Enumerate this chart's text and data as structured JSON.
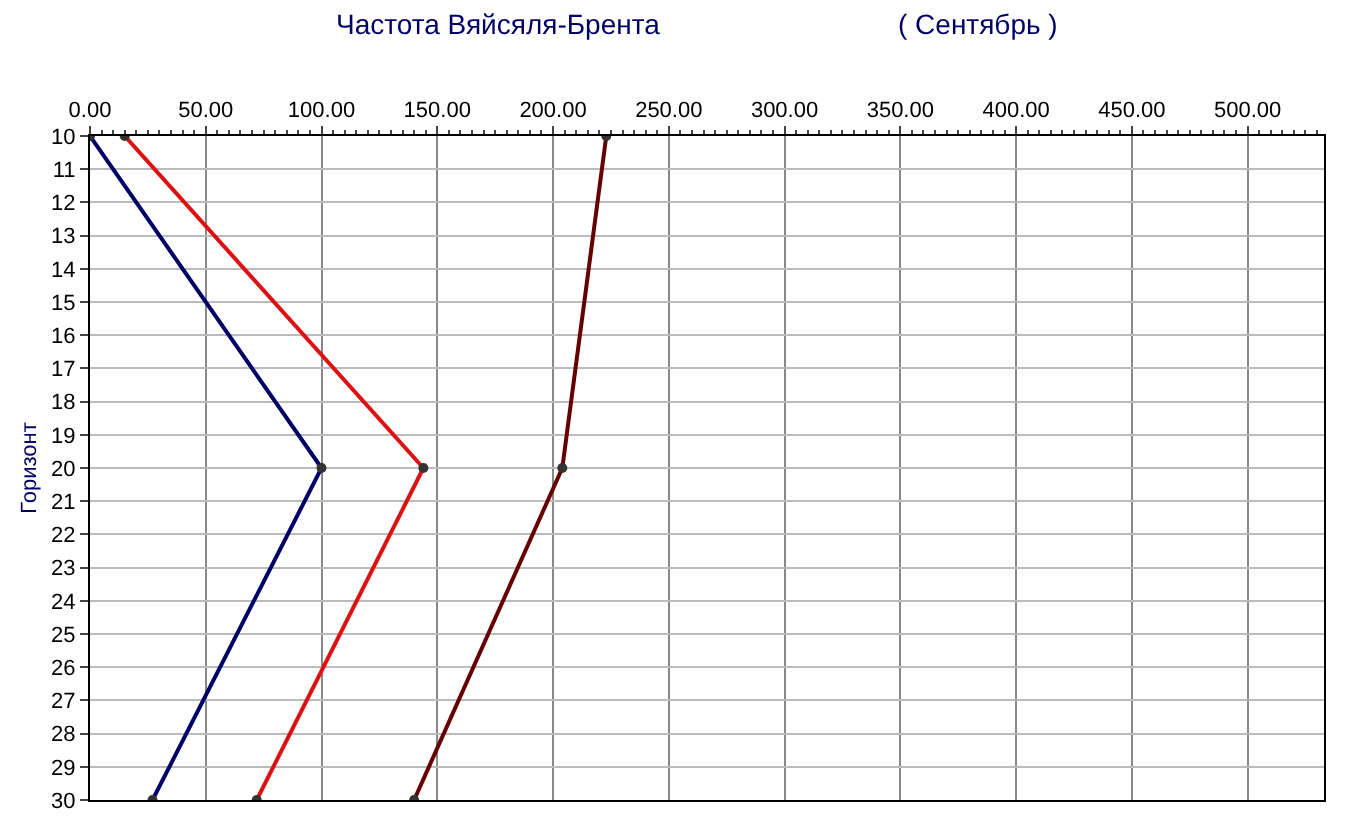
{
  "chart_data": {
    "type": "line",
    "orientation": "horizontal",
    "title": "Частота Вяйсяля-Брента",
    "subtitle": "( Сентябрь )",
    "ylabel": "Горизонт",
    "categories": [
      "10",
      "11",
      "12",
      "13",
      "14",
      "15",
      "16",
      "17",
      "18",
      "19",
      "20",
      "21",
      "22",
      "23",
      "24",
      "25",
      "26",
      "27",
      "28",
      "29",
      "30"
    ],
    "series": [
      {
        "color": "#000066",
        "values": [
          0,
          null,
          null,
          null,
          null,
          null,
          null,
          null,
          null,
          null,
          100,
          null,
          null,
          null,
          null,
          null,
          null,
          null,
          null,
          null,
          27
        ]
      },
      {
        "color": "#dd1111",
        "values": [
          15,
          null,
          null,
          null,
          null,
          null,
          null,
          null,
          null,
          null,
          144,
          null,
          null,
          null,
          null,
          null,
          null,
          null,
          null,
          null,
          72
        ]
      },
      {
        "color": "#660000",
        "values": [
          223,
          null,
          null,
          null,
          null,
          null,
          null,
          null,
          null,
          null,
          204,
          null,
          null,
          null,
          null,
          null,
          null,
          null,
          null,
          null,
          140
        ]
      }
    ],
    "xlim": [
      0,
      533
    ],
    "xticks": [
      {
        "value": 0,
        "label": "0.00"
      },
      {
        "value": 50,
        "label": "50.00"
      },
      {
        "value": 100,
        "label": "100.00"
      },
      {
        "value": 150,
        "label": "150.00"
      },
      {
        "value": 200,
        "label": "200.00"
      },
      {
        "value": 250,
        "label": "250.00"
      },
      {
        "value": 300,
        "label": "300.00"
      },
      {
        "value": 350,
        "label": "350.00"
      },
      {
        "value": 400,
        "label": "400.00"
      },
      {
        "value": 450,
        "label": "450.00"
      },
      {
        "value": 500,
        "label": "500.00"
      }
    ],
    "grid": true,
    "marker": "circle",
    "line_style": "solid"
  }
}
